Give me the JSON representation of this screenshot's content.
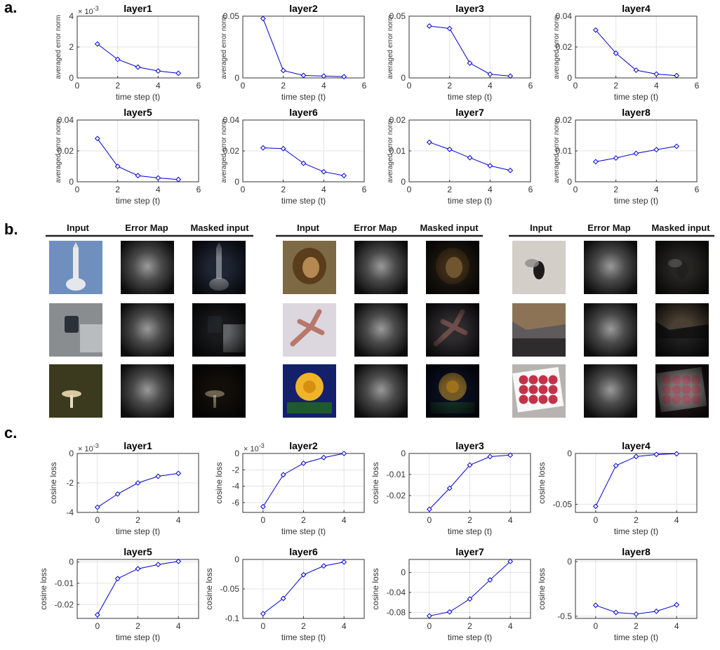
{
  "panel_labels": [
    "a.",
    "b.",
    "c."
  ],
  "image_groups": [
    {
      "headers": [
        "Input",
        "Error Map",
        "Masked input"
      ],
      "rows": [
        {
          "input": {
            "type": "rocket",
            "bg": "#6f8fbf"
          },
          "mask_bg": "#1e2533"
        },
        {
          "input": {
            "type": "cctv",
            "bg": "#8a8d90"
          },
          "mask_bg": "#191a1c"
        },
        {
          "input": {
            "type": "mushroom",
            "bg": "#3b3a1e"
          },
          "mask_bg": "#120f0a"
        }
      ]
    },
    {
      "headers": [
        "Input",
        "Error Map",
        "Masked input"
      ],
      "rows": [
        {
          "input": {
            "type": "lion",
            "bg": "#7d6a45"
          },
          "mask_bg": "#1f1a12"
        },
        {
          "input": {
            "type": "lizard",
            "bg": "#dcd6de"
          },
          "mask_bg": "#2e2b2e"
        },
        {
          "input": {
            "type": "rose",
            "bg": "#14206b"
          },
          "mask_bg": "#0b0f24"
        }
      ]
    },
    {
      "headers": [
        "Input",
        "Error Map",
        "Masked input"
      ],
      "rows": [
        {
          "input": {
            "type": "fly",
            "bg": "#d3cfc8"
          },
          "mask_bg": "#262522"
        },
        {
          "input": {
            "type": "room",
            "bg": "#5f5a5c"
          },
          "mask_bg": "#151414"
        },
        {
          "input": {
            "type": "apples",
            "bg": "#b7b3b0"
          },
          "mask_bg": "#241a1c"
        }
      ]
    }
  ],
  "chart_data": [
    {
      "type": "line",
      "panel": "a",
      "title": "layer1",
      "xlabel": "time step (t)",
      "ylabel": "averaged error norm",
      "multiplier": "× 10",
      "multiplier_exp": "-3",
      "x": [
        1,
        2,
        3,
        4,
        5
      ],
      "y": [
        2.2,
        1.2,
        0.7,
        0.45,
        0.3
      ],
      "xlim": [
        0,
        6
      ],
      "ylim": [
        0,
        4
      ],
      "xticks": [
        0,
        2,
        4,
        6
      ],
      "yticks": [
        0,
        2,
        4
      ],
      "ytick_labels": [
        "0",
        "2",
        "4"
      ],
      "grid": true,
      "color": "#0000cc"
    },
    {
      "type": "line",
      "panel": "a",
      "title": "layer2",
      "xlabel": "time step (t)",
      "ylabel": "averaged error norm",
      "x": [
        1,
        2,
        3,
        4,
        5
      ],
      "y": [
        0.048,
        0.006,
        0.002,
        0.0015,
        0.001
      ],
      "xlim": [
        0,
        6
      ],
      "ylim": [
        0,
        0.05
      ],
      "xticks": [
        0,
        2,
        4,
        6
      ],
      "yticks": [
        0,
        0.05
      ],
      "ytick_labels": [
        "0",
        "0.05"
      ],
      "grid": true,
      "color": "#0000cc"
    },
    {
      "type": "line",
      "panel": "a",
      "title": "layer3",
      "xlabel": "time step (t)",
      "ylabel": "averaged error norm",
      "x": [
        1,
        2,
        3,
        4,
        5
      ],
      "y": [
        0.042,
        0.04,
        0.012,
        0.003,
        0.0015
      ],
      "xlim": [
        0,
        6
      ],
      "ylim": [
        0,
        0.05
      ],
      "xticks": [
        0,
        2,
        4,
        6
      ],
      "yticks": [
        0,
        0.05
      ],
      "ytick_labels": [
        "0",
        "0.05"
      ],
      "grid": true,
      "color": "#0000cc"
    },
    {
      "type": "line",
      "panel": "a",
      "title": "layer4",
      "xlabel": "time step (t)",
      "ylabel": "averaged error norm",
      "x": [
        1,
        2,
        3,
        4,
        5
      ],
      "y": [
        0.031,
        0.016,
        0.005,
        0.0025,
        0.0015
      ],
      "xlim": [
        0,
        6
      ],
      "ylim": [
        0,
        0.04
      ],
      "xticks": [
        0,
        2,
        4,
        6
      ],
      "yticks": [
        0,
        0.02,
        0.04
      ],
      "ytick_labels": [
        "0",
        "0.02",
        "0.04"
      ],
      "grid": true,
      "color": "#0000cc"
    },
    {
      "type": "line",
      "panel": "a",
      "title": "layer5",
      "xlabel": "time step (t)",
      "ylabel": "averaged error norm",
      "x": [
        1,
        2,
        3,
        4,
        5
      ],
      "y": [
        0.028,
        0.01,
        0.004,
        0.0025,
        0.0015
      ],
      "xlim": [
        0,
        6
      ],
      "ylim": [
        0,
        0.04
      ],
      "xticks": [
        0,
        2,
        4,
        6
      ],
      "yticks": [
        0,
        0.02,
        0.04
      ],
      "ytick_labels": [
        "0",
        "0.02",
        "0.04"
      ],
      "grid": true,
      "color": "#0000cc"
    },
    {
      "type": "line",
      "panel": "a",
      "title": "layer6",
      "xlabel": "time step (t)",
      "ylabel": "averaged error norm",
      "x": [
        1,
        2,
        3,
        4,
        5
      ],
      "y": [
        0.022,
        0.0215,
        0.012,
        0.0065,
        0.004
      ],
      "xlim": [
        0,
        6
      ],
      "ylim": [
        0,
        0.04
      ],
      "xticks": [
        0,
        2,
        4,
        6
      ],
      "yticks": [
        0,
        0.02,
        0.04
      ],
      "ytick_labels": [
        "0",
        "0.02",
        "0.04"
      ],
      "grid": true,
      "color": "#0000cc"
    },
    {
      "type": "line",
      "panel": "a",
      "title": "layer7",
      "xlabel": "time step (t)",
      "ylabel": "averaged error norm",
      "x": [
        1,
        2,
        3,
        4,
        5
      ],
      "y": [
        0.0128,
        0.0105,
        0.0078,
        0.0052,
        0.0037
      ],
      "xlim": [
        0,
        6
      ],
      "ylim": [
        0,
        0.02
      ],
      "xticks": [
        0,
        2,
        4,
        6
      ],
      "yticks": [
        0,
        0.01,
        0.02
      ],
      "ytick_labels": [
        "0",
        "0.01",
        "0.02"
      ],
      "grid": true,
      "color": "#0000cc"
    },
    {
      "type": "line",
      "panel": "a",
      "title": "layer8",
      "xlabel": "time step (t)",
      "ylabel": "averaged error norm",
      "x": [
        1,
        2,
        3,
        4,
        5
      ],
      "y": [
        0.0065,
        0.0077,
        0.0092,
        0.0104,
        0.0115
      ],
      "xlim": [
        0,
        6
      ],
      "ylim": [
        0,
        0.02
      ],
      "xticks": [
        0,
        2,
        4,
        6
      ],
      "yticks": [
        0,
        0.01,
        0.02
      ],
      "ytick_labels": [
        "0",
        "0.01",
        "0.02"
      ],
      "grid": true,
      "color": "#0000cc"
    },
    {
      "type": "line",
      "panel": "c",
      "title": "layer1",
      "xlabel": "time step (t)",
      "ylabel": "cosine loss",
      "multiplier": "× 10",
      "multiplier_exp": "-3",
      "x": [
        0,
        1,
        2,
        3,
        4
      ],
      "y": [
        -3.65,
        -2.75,
        -2.0,
        -1.55,
        -1.35
      ],
      "xlim": [
        -1,
        5
      ],
      "ylim": [
        -4,
        0
      ],
      "xticks": [
        0,
        2,
        4
      ],
      "yticks": [
        -4,
        -2,
        0
      ],
      "ytick_labels": [
        "-4",
        "-2",
        "0"
      ],
      "grid": true,
      "color": "#0000cc"
    },
    {
      "type": "line",
      "panel": "c",
      "title": "layer2",
      "xlabel": "time step (t)",
      "ylabel": "cosine loss",
      "multiplier": "× 10",
      "multiplier_exp": "-3",
      "x": [
        0,
        1,
        2,
        3,
        4
      ],
      "y": [
        -6.5,
        -2.6,
        -1.2,
        -0.5,
        0
      ],
      "xlim": [
        -1,
        5
      ],
      "ylim": [
        -7.2,
        0
      ],
      "xticks": [
        0,
        2,
        4
      ],
      "yticks": [
        -6,
        -4,
        -2,
        0
      ],
      "ytick_labels": [
        "-6",
        "-4",
        "-2",
        "0"
      ],
      "grid": true,
      "color": "#0000cc"
    },
    {
      "type": "line",
      "panel": "c",
      "title": "layer3",
      "xlabel": "time step (t)",
      "ylabel": "cosine loss",
      "x": [
        0,
        1,
        2,
        3,
        4
      ],
      "y": [
        -0.0265,
        -0.0165,
        -0.0055,
        -0.0015,
        -0.0008
      ],
      "xlim": [
        -1,
        5
      ],
      "ylim": [
        -0.028,
        0
      ],
      "xticks": [
        0,
        2,
        4
      ],
      "yticks": [
        -0.02,
        -0.01,
        0
      ],
      "ytick_labels": [
        "-0.02",
        "-0.01",
        "0"
      ],
      "grid": true,
      "color": "#0000cc"
    },
    {
      "type": "line",
      "panel": "c",
      "title": "layer4",
      "xlabel": "time step (t)",
      "ylabel": "cosine loss",
      "x": [
        0,
        1,
        2,
        3,
        4
      ],
      "y": [
        -0.052,
        -0.012,
        -0.003,
        -0.001,
        -0.0003
      ],
      "xlim": [
        -1,
        5
      ],
      "ylim": [
        -0.058,
        0
      ],
      "xticks": [
        0,
        2,
        4
      ],
      "yticks": [
        -0.05,
        0
      ],
      "ytick_labels": [
        "-0.05",
        "0"
      ],
      "grid": true,
      "color": "#0000cc"
    },
    {
      "type": "line",
      "panel": "c",
      "title": "layer5",
      "xlabel": "time step (t)",
      "ylabel": "cosine loss",
      "x": [
        0,
        1,
        2,
        3,
        4
      ],
      "y": [
        -0.0248,
        -0.0078,
        -0.0032,
        -0.0012,
        0.0003
      ],
      "xlim": [
        -1,
        5
      ],
      "ylim": [
        -0.0265,
        0.0012
      ],
      "xticks": [
        0,
        2,
        4
      ],
      "yticks": [
        -0.02,
        -0.01,
        0
      ],
      "ytick_labels": [
        "-0.02",
        "-0.01",
        "0"
      ],
      "grid": true,
      "color": "#0000cc"
    },
    {
      "type": "line",
      "panel": "c",
      "title": "layer6",
      "xlabel": "time step (t)",
      "ylabel": "cosine loss",
      "x": [
        0,
        1,
        2,
        3,
        4
      ],
      "y": [
        -0.092,
        -0.066,
        -0.026,
        -0.011,
        -0.0045
      ],
      "xlim": [
        -1,
        5
      ],
      "ylim": [
        -0.1,
        0
      ],
      "xticks": [
        0,
        2,
        4
      ],
      "yticks": [
        -0.1,
        -0.05,
        0
      ],
      "ytick_labels": [
        "-0.1",
        "-0.05",
        "0"
      ],
      "grid": true,
      "color": "#0000cc"
    },
    {
      "type": "line",
      "panel": "c",
      "title": "layer7",
      "xlabel": "time step (t)",
      "ylabel": "cosine loss",
      "x": [
        0,
        1,
        2,
        3,
        4
      ],
      "y": [
        -0.087,
        -0.079,
        -0.053,
        -0.015,
        0.022
      ],
      "xlim": [
        -1,
        5
      ],
      "ylim": [
        -0.092,
        0.026
      ],
      "xticks": [
        0,
        2,
        4
      ],
      "yticks": [
        -0.08,
        -0.04,
        0
      ],
      "ytick_labels": [
        "-0.08",
        "-0.04",
        "0"
      ],
      "grid": true,
      "color": "#0000cc"
    },
    {
      "type": "line",
      "panel": "c",
      "title": "layer8",
      "xlabel": "time step (t)",
      "ylabel": "cosine loss",
      "x": [
        0,
        1,
        2,
        3,
        4
      ],
      "y": [
        -0.4,
        -0.465,
        -0.48,
        -0.455,
        -0.395
      ],
      "xlim": [
        -1,
        5
      ],
      "ylim": [
        -0.52,
        0.02
      ],
      "xticks": [
        0,
        2,
        4
      ],
      "yticks": [
        -0.5,
        0
      ],
      "ytick_labels": [
        "-0.5",
        "0"
      ],
      "grid": true,
      "color": "#0000cc"
    }
  ]
}
